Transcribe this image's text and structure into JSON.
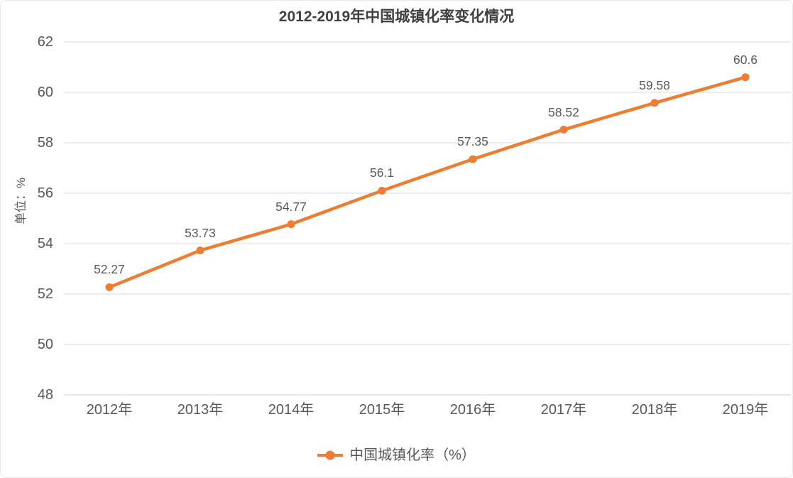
{
  "page": {
    "background": "#FFFFFF",
    "border_color": "#E8E8E8"
  },
  "chart_data": {
    "type": "line",
    "title": "2012-2019年中国城镇化率变化情况",
    "ylabel": "单位：%",
    "xlabel": "",
    "categories": [
      "2012年",
      "2013年",
      "2014年",
      "2015年",
      "2016年",
      "2017年",
      "2018年",
      "2019年"
    ],
    "series": [
      {
        "name": "中国城镇化率（%）",
        "values": [
          52.27,
          53.73,
          54.77,
          56.1,
          57.35,
          58.52,
          59.58,
          60.6
        ],
        "point_labels": [
          "52.27",
          "53.73",
          "54.77",
          "56.1",
          "57.35",
          "58.52",
          "59.58",
          "60.6"
        ],
        "color": "#ED7D31",
        "marker": "circle"
      }
    ],
    "ylim": [
      48,
      62
    ],
    "ytick_step": 2,
    "ytick_labels": [
      "48",
      "50",
      "52",
      "54",
      "56",
      "58",
      "60",
      "62"
    ],
    "grid": true,
    "legend_position": "bottom"
  },
  "colors": {
    "series": "#ED7D31",
    "title_text": "#404040",
    "axis_text": "#595959",
    "data_label_text": "#595959",
    "gridline": "#D9D9D9",
    "axis_line": "#CDCDCD",
    "border": "#E8E8E8",
    "background": "#FFFFFF"
  }
}
